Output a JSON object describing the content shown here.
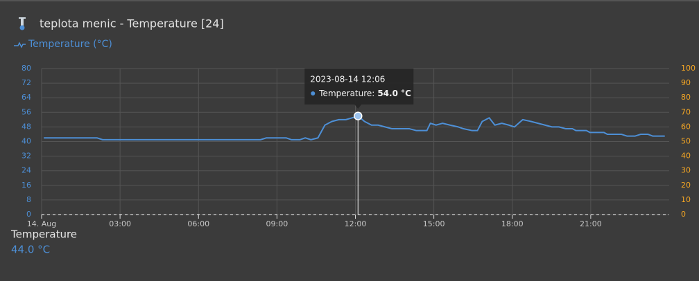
{
  "header": {
    "title": "teplota menic - Temperature [24]"
  },
  "chart_data": {
    "type": "line",
    "x": [
      "2023-08-14 00:05",
      "2023-08-14 02:07",
      "2023-08-14 02:20",
      "2023-08-14 08:22",
      "2023-08-14 08:36",
      "2023-08-14 09:21",
      "2023-08-14 09:33",
      "2023-08-14 09:53",
      "2023-08-14 10:05",
      "2023-08-14 10:18",
      "2023-08-14 10:34",
      "2023-08-14 10:50",
      "2023-08-14 11:06",
      "2023-08-14 11:22",
      "2023-08-14 11:38",
      "2023-08-14 11:53",
      "2023-08-14 12:06",
      "2023-08-14 12:21",
      "2023-08-14 12:37",
      "2023-08-14 12:52",
      "2023-08-14 13:08",
      "2023-08-14 13:24",
      "2023-08-14 14:04",
      "2023-08-14 14:20",
      "2023-08-14 14:44",
      "2023-08-14 14:52",
      "2023-08-14 15:05",
      "2023-08-14 15:20",
      "2023-08-14 15:37",
      "2023-08-14 15:56",
      "2023-08-14 16:08",
      "2023-08-14 16:28",
      "2023-08-14 16:40",
      "2023-08-14 16:51",
      "2023-08-14 17:07",
      "2023-08-14 17:20",
      "2023-08-14 17:36",
      "2023-08-14 17:52",
      "2023-08-14 18:05",
      "2023-08-14 18:24",
      "2023-08-14 18:43",
      "2023-08-14 18:59",
      "2023-08-14 19:15",
      "2023-08-14 19:31",
      "2023-08-14 19:47",
      "2023-08-14 20:03",
      "2023-08-14 20:18",
      "2023-08-14 20:26",
      "2023-08-14 20:50",
      "2023-08-14 20:58",
      "2023-08-14 21:30",
      "2023-08-14 21:38",
      "2023-08-14 22:10",
      "2023-08-14 22:23",
      "2023-08-14 22:42",
      "2023-08-14 22:55",
      "2023-08-14 23:11",
      "2023-08-14 23:22",
      "2023-08-14 23:50"
    ],
    "series": [
      {
        "name": "Temperature (°C)",
        "color": "#4d8fd6",
        "values": [
          42,
          42,
          41,
          41,
          42,
          42,
          41,
          41,
          42,
          41,
          42,
          49,
          51,
          52,
          52,
          53,
          54,
          51,
          49,
          49,
          48,
          47,
          47,
          46,
          46,
          50,
          49,
          50,
          49,
          48,
          47,
          46,
          46,
          51,
          53,
          49,
          50,
          49,
          48,
          52,
          51,
          50,
          49,
          48,
          48,
          47,
          47,
          46,
          46,
          45,
          45,
          44,
          44,
          43,
          43,
          44,
          44,
          43,
          43
        ]
      }
    ],
    "xlim": [
      "2023-08-14 00:00",
      "2023-08-15 00:00"
    ],
    "xticks": [
      {
        "value": "2023-08-14 00:00",
        "label": "14. Aug"
      },
      {
        "value": "2023-08-14 03:00",
        "label": "03:00"
      },
      {
        "value": "2023-08-14 06:00",
        "label": "06:00"
      },
      {
        "value": "2023-08-14 09:00",
        "label": "09:00"
      },
      {
        "value": "2023-08-14 12:00",
        "label": "12:00"
      },
      {
        "value": "2023-08-14 15:00",
        "label": "15:00"
      },
      {
        "value": "2023-08-14 18:00",
        "label": "18:00"
      },
      {
        "value": "2023-08-14 21:00",
        "label": "21:00"
      }
    ],
    "ylim": [
      0,
      80
    ],
    "yticks": [
      0,
      8,
      16,
      24,
      32,
      40,
      48,
      56,
      64,
      72,
      80
    ],
    "ytick_color": "#4d8fd6",
    "y2lim": [
      0,
      100
    ],
    "y2ticks": [
      0,
      10,
      20,
      30,
      40,
      50,
      60,
      70,
      80,
      90,
      100
    ],
    "y2tick_color": "#f5a623",
    "grid": true,
    "tooltip": {
      "title": "2023-08-14 12:06",
      "label": "Temperature:",
      "value": 54,
      "value_label": "54.0 °C"
    }
  },
  "current": {
    "label": "Temperature",
    "value": 44,
    "value_label": "44.0 °C"
  }
}
